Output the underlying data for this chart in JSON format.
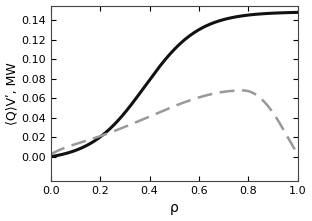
{
  "title": "",
  "xlabel": "ρ",
  "ylabel": "⟨Q⟩Vʹ, MW",
  "xlim": [
    0,
    1.0
  ],
  "ylim": [
    -0.025,
    0.155
  ],
  "yticks": [
    0.0,
    0.02,
    0.04,
    0.06,
    0.08,
    0.1,
    0.12,
    0.14
  ],
  "xticks": [
    0,
    0.2,
    0.4,
    0.6,
    0.8,
    1.0
  ],
  "solid_color": "#111111",
  "dashed_color": "#999999",
  "bg_color": "#ffffff",
  "linewidth_solid": 2.2,
  "linewidth_dashed": 1.8
}
